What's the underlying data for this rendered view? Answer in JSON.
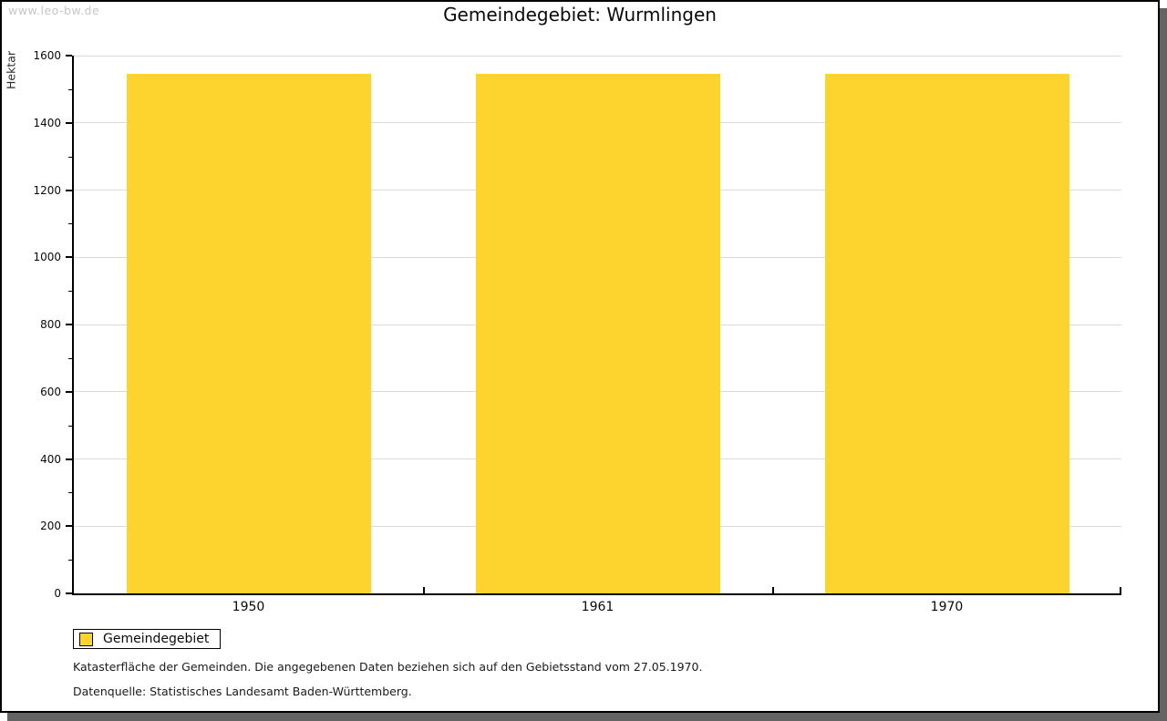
{
  "header": {
    "watermark": "www.leo-bw.de",
    "title": "Gemeindegebiet: Wurmlingen"
  },
  "chart_data": {
    "type": "bar",
    "title": "Gemeindegebiet: Wurmlingen",
    "categories": [
      "1950",
      "1961",
      "1970"
    ],
    "series": [
      {
        "name": "Gemeindegebiet",
        "values": [
          1546,
          1546,
          1546
        ]
      }
    ],
    "xlabel": "",
    "ylabel": "Hektar",
    "ylim": [
      0,
      1600
    ],
    "ytick_step": 200,
    "ytick_minor_step": 100,
    "grid": true,
    "bar_color": "#fcd42d",
    "legend_position": "bottom-left"
  },
  "legend": {
    "label": "Gemeindegebiet",
    "swatch_color": "#fcd42d"
  },
  "footnotes": {
    "line1": "Katasterfläche der Gemeinden. Die angegebenen Daten beziehen sich auf den Gebietsstand vom 27.05.1970.",
    "line2": "Datenquelle: Statistisches Landesamt Baden-Württemberg."
  },
  "colors": {
    "bar": "#fcd42d",
    "gridline": "#dbdbdb",
    "axis": "#000000",
    "frame_shadow": "#646464",
    "watermark_text": "#c6c6c6"
  }
}
